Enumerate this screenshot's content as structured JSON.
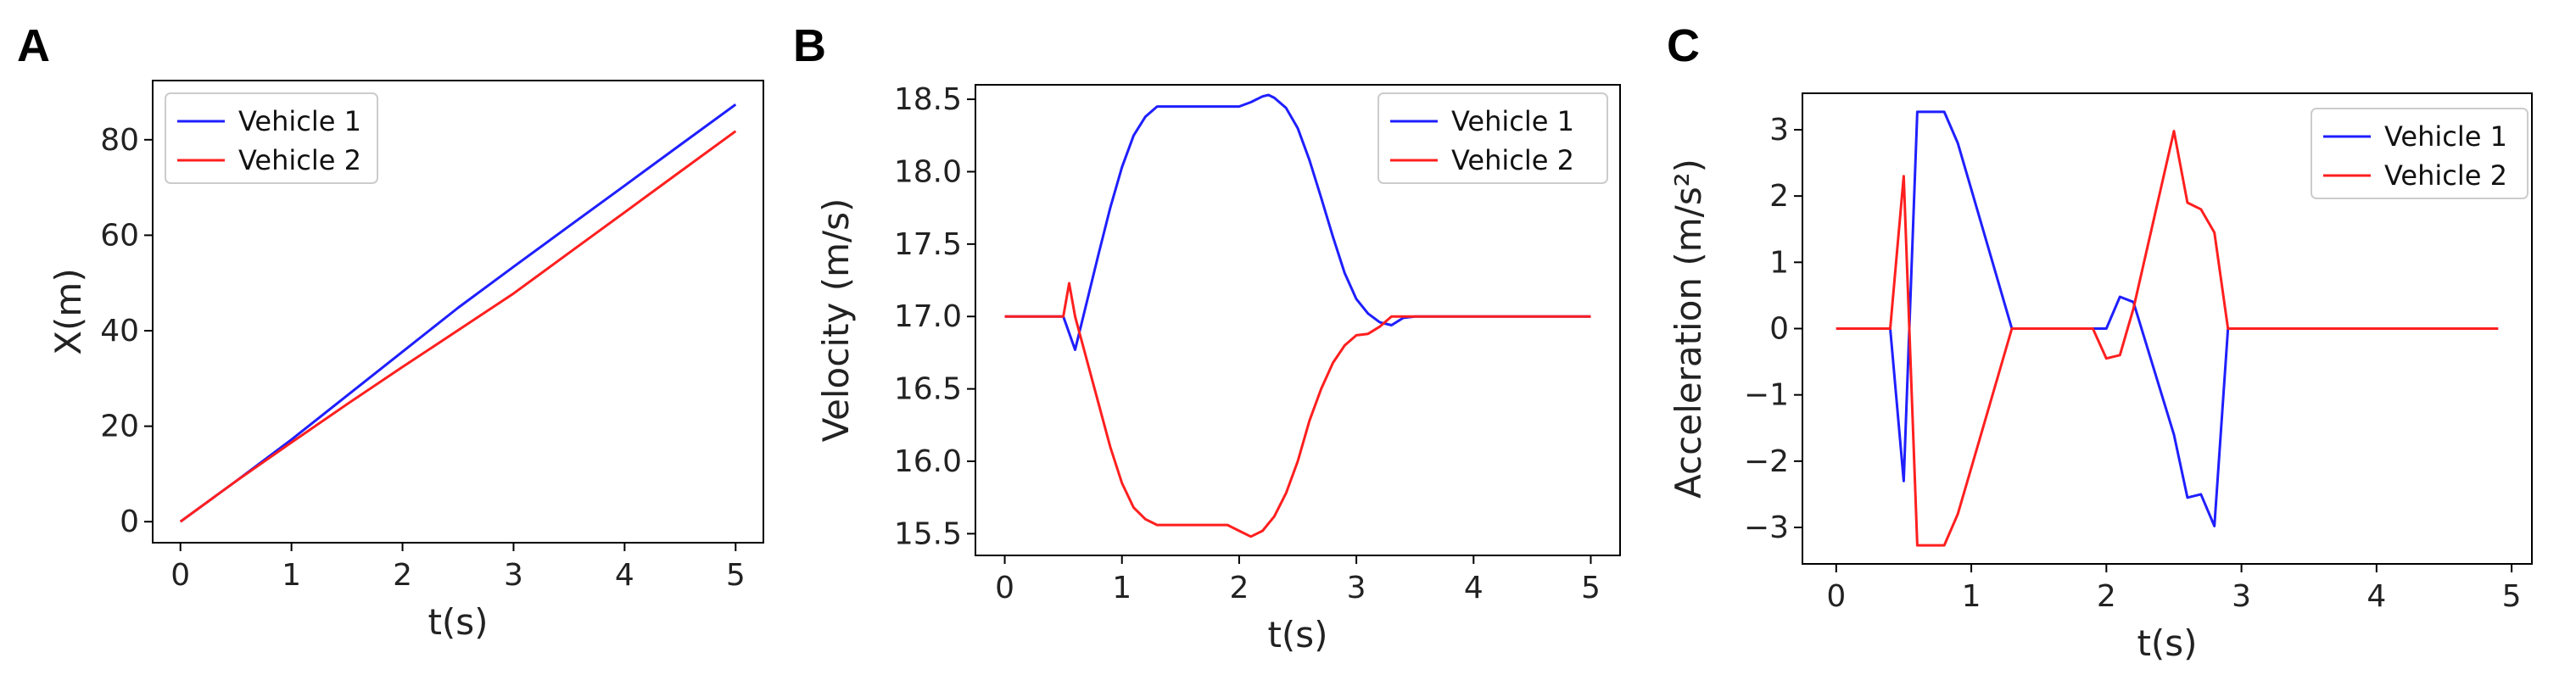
{
  "colors": {
    "vehicle1": "#1f1fff",
    "vehicle2": "#ff1f1f",
    "axis": "#000000",
    "legend_border": "#cccccc"
  },
  "chart_data": [
    {
      "panel": "A",
      "type": "line",
      "xlabel": "t(s)",
      "ylabel": "X(m)",
      "xlim": [
        -0.25,
        5.25
      ],
      "ylim": [
        -4.4,
        92.4
      ],
      "xticks": [
        0,
        1,
        2,
        3,
        4,
        5
      ],
      "yticks": [
        0,
        20,
        40,
        60,
        80
      ],
      "legend_position": "upper left",
      "series": [
        {
          "name": "Vehicle 1",
          "color": "#1f1fff",
          "x": [
            0,
            0.5,
            1,
            1.5,
            2,
            2.5,
            3,
            3.5,
            4,
            4.5,
            5
          ],
          "y": [
            0,
            8.5,
            17.2,
            26.4,
            35.6,
            44.8,
            53.4,
            61.9,
            70.4,
            78.9,
            87.4
          ]
        },
        {
          "name": "Vehicle 2",
          "color": "#ff1f1f",
          "x": [
            0,
            0.5,
            1,
            1.5,
            2,
            2.5,
            3,
            3.5,
            4,
            4.5,
            5
          ],
          "y": [
            0,
            8.5,
            16.6,
            24.6,
            32.4,
            40.1,
            47.8,
            56.3,
            64.8,
            73.3,
            81.8
          ]
        }
      ]
    },
    {
      "panel": "B",
      "type": "line",
      "xlabel": "t(s)",
      "ylabel": "Velocity (m/s)",
      "xlim": [
        -0.25,
        5.25
      ],
      "ylim": [
        15.35,
        18.6
      ],
      "xticks": [
        0,
        1,
        2,
        3,
        4,
        5
      ],
      "yticks": [
        15.5,
        16.0,
        16.5,
        17.0,
        17.5,
        18.0,
        18.5
      ],
      "legend_position": "upper right",
      "series": [
        {
          "name": "Vehicle 1",
          "color": "#1f1fff",
          "x": [
            0,
            0.4,
            0.5,
            0.6,
            0.7,
            0.8,
            0.9,
            1.0,
            1.1,
            1.2,
            1.3,
            1.5,
            1.7,
            1.9,
            2.0,
            2.1,
            2.2,
            2.25,
            2.3,
            2.4,
            2.5,
            2.6,
            2.7,
            2.8,
            2.9,
            3.0,
            3.1,
            3.2,
            3.3,
            3.4,
            3.5,
            4.0,
            4.5,
            5.0
          ],
          "y": [
            17.0,
            17.0,
            17.0,
            16.77,
            17.1,
            17.43,
            17.75,
            18.03,
            18.25,
            18.38,
            18.45,
            18.45,
            18.45,
            18.45,
            18.45,
            18.48,
            18.52,
            18.53,
            18.51,
            18.44,
            18.3,
            18.08,
            17.82,
            17.55,
            17.3,
            17.12,
            17.02,
            16.96,
            16.94,
            16.99,
            17.0,
            17.0,
            17.0,
            17.0
          ]
        },
        {
          "name": "Vehicle 2",
          "color": "#ff1f1f",
          "x": [
            0,
            0.4,
            0.5,
            0.55,
            0.6,
            0.7,
            0.8,
            0.9,
            1.0,
            1.1,
            1.2,
            1.3,
            1.5,
            1.7,
            1.9,
            2.0,
            2.1,
            2.2,
            2.3,
            2.4,
            2.5,
            2.6,
            2.7,
            2.8,
            2.9,
            3.0,
            3.1,
            3.2,
            3.3,
            3.4,
            3.5,
            4.0,
            4.5,
            5.0
          ],
          "y": [
            17.0,
            17.0,
            17.0,
            17.23,
            17.0,
            16.7,
            16.4,
            16.1,
            15.85,
            15.68,
            15.6,
            15.56,
            15.56,
            15.56,
            15.56,
            15.52,
            15.48,
            15.52,
            15.62,
            15.78,
            16.0,
            16.28,
            16.5,
            16.68,
            16.8,
            16.87,
            16.88,
            16.93,
            17.0,
            17.0,
            17.0,
            17.0,
            17.0,
            17.0
          ]
        }
      ]
    },
    {
      "panel": "C",
      "type": "line",
      "xlabel": "t(s)",
      "ylabel": "Acceleration (m/s²)",
      "xlim": [
        -0.25,
        5.15
      ],
      "ylim": [
        -3.55,
        3.55
      ],
      "xticks": [
        0,
        1,
        2,
        3,
        4,
        5
      ],
      "yticks": [
        -3,
        -2,
        -1,
        0,
        1,
        2,
        3
      ],
      "legend_position": "upper right",
      "series": [
        {
          "name": "Vehicle 1",
          "color": "#1f1fff",
          "x": [
            0,
            0.4,
            0.5,
            0.6,
            0.7,
            0.8,
            0.9,
            1.0,
            1.3,
            1.4,
            1.9,
            2.0,
            2.1,
            2.2,
            2.5,
            2.6,
            2.7,
            2.8,
            2.9,
            3.0,
            4.0,
            4.9
          ],
          "y": [
            0,
            0,
            -2.3,
            3.27,
            3.27,
            3.27,
            2.8,
            2.1,
            0,
            0,
            0,
            0,
            0.48,
            0.4,
            -1.6,
            -2.55,
            -2.5,
            -2.98,
            0,
            0,
            0,
            0
          ]
        },
        {
          "name": "Vehicle 2",
          "color": "#ff1f1f",
          "x": [
            0,
            0.4,
            0.5,
            0.6,
            0.7,
            0.8,
            0.9,
            1.0,
            1.3,
            1.4,
            1.9,
            2.0,
            2.1,
            2.2,
            2.5,
            2.6,
            2.7,
            2.8,
            2.9,
            3.0,
            4.0,
            4.9
          ],
          "y": [
            0,
            0,
            2.3,
            -3.27,
            -3.27,
            -3.27,
            -2.8,
            -2.1,
            0,
            0,
            0,
            -0.45,
            -0.4,
            0.3,
            2.98,
            1.9,
            1.8,
            1.45,
            0,
            0,
            0,
            0
          ]
        }
      ]
    }
  ]
}
